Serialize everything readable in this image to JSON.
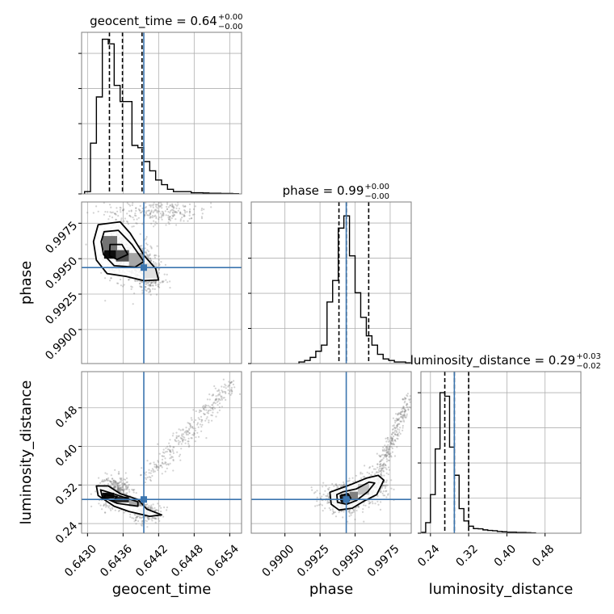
{
  "chart_data": {
    "type": "corner",
    "grid": true,
    "colors": {
      "truth": "#3b75af",
      "hist": "#000000",
      "grid": "#b0b0b0",
      "scatter": "#7f7f7f"
    },
    "parameters": [
      {
        "name": "geocent_time",
        "label": "geocent_time",
        "range": [
          0.6429,
          0.6456
        ],
        "ticks": [
          0.643,
          0.6436,
          0.6442,
          0.6448,
          0.6454
        ],
        "tick_labels": [
          "0.6430",
          "0.6436",
          "0.6442",
          "0.6448",
          "0.6454"
        ],
        "truth": 0.64395,
        "quantiles": [
          0.64337,
          0.64359,
          0.64392
        ],
        "title": {
          "base": "geocent_time = 0.64",
          "plus": "+0.00",
          "minus": "−0.00"
        },
        "hist": {
          "edges_start": 0.64295,
          "bin_width": 0.0001,
          "counts": [
            1,
            22,
            42,
            67,
            65,
            47,
            40,
            40,
            21,
            20,
            14,
            10,
            6,
            4,
            2,
            1,
            1,
            1,
            0.5,
            0.5,
            0.4,
            0.3,
            0.3,
            0.2,
            0.2,
            0.1
          ],
          "ymax": 70
        }
      },
      {
        "name": "phase",
        "label": "phase",
        "range": [
          0.9876,
          0.999
        ],
        "ticks": [
          0.99,
          0.9925,
          0.995,
          0.9975
        ],
        "tick_labels": [
          "0.9900",
          "0.9925",
          "0.9950",
          "0.9975"
        ],
        "truth": 0.99437,
        "quantiles": [
          0.99385,
          0.99438,
          0.99597
        ],
        "title": {
          "base": "phase = 0.99",
          "plus": "+0.00",
          "minus": "−0.00"
        },
        "hist": {
          "edges_start": 0.991,
          "bin_width": 0.0004,
          "counts": [
            1,
            2,
            4,
            8,
            12,
            40,
            54,
            88,
            96,
            70,
            46,
            30,
            18,
            12,
            6,
            3,
            2,
            1,
            1,
            0.5
          ],
          "ymax": 105
        }
      },
      {
        "name": "luminosity_distance",
        "label": "luminosity_distance",
        "range": [
          0.22,
          0.555
        ],
        "ticks": [
          0.24,
          0.32,
          0.4,
          0.48
        ],
        "tick_labels": [
          "0.24",
          "0.32",
          "0.40",
          "0.48"
        ],
        "truth": 0.29,
        "quantiles": [
          0.27,
          0.29,
          0.32
        ],
        "title": {
          "base": "luminosity_distance = 0.29",
          "plus": "+0.03",
          "minus": "−0.02"
        },
        "hist": {
          "edges_start": 0.22,
          "bin_width": 0.01,
          "counts": [
            0.5,
            6,
            22,
            48,
            80,
            78,
            49,
            33,
            14,
            7,
            4,
            2.6,
            2.5,
            1.9,
            1.6,
            1.4,
            1.0,
            0.8,
            0.6,
            0.6,
            0.4,
            0.4,
            0.3,
            0.2
          ],
          "ymax": 92
        }
      }
    ],
    "pairs": [
      {
        "x": "geocent_time",
        "y": "phase",
        "mode": {
          "x": 0.64348,
          "y": 0.99525
        },
        "scatter_blobs": [
          {
            "cx": 0.6435,
            "cy": 0.9956,
            "sx": 0.00013,
            "sy": 0.00085,
            "n": 600
          },
          {
            "cx": 0.64385,
            "cy": 0.9947,
            "sx": 0.00016,
            "sy": 0.00075,
            "n": 420
          },
          {
            "cx": 0.6442,
            "cy": 0.9983,
            "sx": 0.00045,
            "sy": 0.0004,
            "n": 260
          },
          {
            "cx": 0.64405,
            "cy": 0.9934,
            "sx": 0.00015,
            "sy": 0.00035,
            "n": 120
          }
        ],
        "contours": [
          [
            [
              0.64318,
              0.9974
            ],
            [
              0.64355,
              0.9976
            ],
            [
              0.64372,
              0.9968
            ],
            [
              0.64396,
              0.9952
            ],
            [
              0.64415,
              0.9943
            ],
            [
              0.6442,
              0.9935
            ],
            [
              0.64395,
              0.99345
            ],
            [
              0.64365,
              0.99375
            ],
            [
              0.64333,
              0.99395
            ],
            [
              0.64315,
              0.9949
            ],
            [
              0.6431,
              0.9962
            ]
          ],
          [
            [
              0.64328,
              0.9969
            ],
            [
              0.64352,
              0.997
            ],
            [
              0.64375,
              0.996
            ],
            [
              0.64395,
              0.9948
            ],
            [
              0.6438,
              0.9944
            ],
            [
              0.64345,
              0.9945
            ],
            [
              0.64327,
              0.9953
            ],
            [
              0.64323,
              0.9962
            ]
          ],
          [
            [
              0.64338,
              0.996
            ],
            [
              0.64358,
              0.996
            ],
            [
              0.64368,
              0.9953
            ],
            [
              0.6435,
              0.99495
            ],
            [
              0.64337,
              0.9952
            ]
          ]
        ],
        "density_cells": [
          {
            "x0": 0.64328,
            "x1": 0.64348,
            "y0": 0.995,
            "y1": 0.9956,
            "shade": 0.95
          },
          {
            "x0": 0.64348,
            "x1": 0.6437,
            "y0": 0.9948,
            "y1": 0.9956,
            "shade": 0.7
          },
          {
            "x0": 0.64325,
            "x1": 0.6435,
            "y0": 0.9956,
            "y1": 0.9966,
            "shade": 0.55
          },
          {
            "x0": 0.6437,
            "x1": 0.64395,
            "y0": 0.9944,
            "y1": 0.9954,
            "shade": 0.35
          },
          {
            "x0": 0.64395,
            "x1": 0.64418,
            "y0": 0.9936,
            "y1": 0.9947,
            "shade": 0.12
          }
        ]
      },
      {
        "x": "geocent_time",
        "y": "luminosity_distance",
        "mode": {
          "x": 0.64355,
          "y": 0.295
        },
        "scatter_blobs": [
          {
            "cx": 0.64345,
            "cy": 0.305,
            "sx": 0.00013,
            "sy": 0.016,
            "n": 520
          },
          {
            "cx": 0.644,
            "cy": 0.262,
            "sx": 0.00012,
            "sy": 0.01,
            "n": 220
          }
        ],
        "scatter_streak": {
          "x0": 0.64395,
          "y0": 0.33,
          "x1": 0.64545,
          "y1": 0.53,
          "sx": 9e-05,
          "sy": 0.008,
          "n": 320
        },
        "contours": [
          [
            [
              0.64315,
              0.318
            ],
            [
              0.64335,
              0.318
            ],
            [
              0.64355,
              0.302
            ],
            [
              0.64385,
              0.29
            ],
            [
              0.644,
              0.27
            ],
            [
              0.64425,
              0.258
            ],
            [
              0.64405,
              0.255
            ],
            [
              0.6437,
              0.265
            ],
            [
              0.64345,
              0.276
            ],
            [
              0.64318,
              0.298
            ]
          ],
          [
            [
              0.64322,
              0.31
            ],
            [
              0.64348,
              0.3
            ],
            [
              0.64385,
              0.285
            ],
            [
              0.64385,
              0.276
            ],
            [
              0.6435,
              0.282
            ],
            [
              0.64325,
              0.295
            ]
          ],
          [
            [
              0.6433,
              0.3
            ],
            [
              0.6435,
              0.296
            ],
            [
              0.64345,
              0.288
            ],
            [
              0.64328,
              0.292
            ]
          ]
        ],
        "density_cells": [
          {
            "x0": 0.64325,
            "x1": 0.64345,
            "y0": 0.292,
            "y1": 0.304,
            "shade": 0.95
          },
          {
            "x0": 0.64345,
            "x1": 0.6437,
            "y0": 0.284,
            "y1": 0.296,
            "shade": 0.85
          },
          {
            "x0": 0.6437,
            "x1": 0.64395,
            "y0": 0.276,
            "y1": 0.29,
            "shade": 0.35
          }
        ]
      },
      {
        "x": "phase",
        "y": "luminosity_distance",
        "mode": {
          "x": 0.9942,
          "y": 0.29
        },
        "scatter_blobs": [
          {
            "cx": 0.9943,
            "cy": 0.292,
            "sx": 0.0008,
            "sy": 0.014,
            "n": 600
          },
          {
            "cx": 0.9962,
            "cy": 0.318,
            "sx": 0.0006,
            "sy": 0.014,
            "n": 240
          }
        ],
        "scatter_streak": {
          "x0": 0.9965,
          "y0": 0.33,
          "x1": 0.9988,
          "y1": 0.5,
          "sx": 0.0002,
          "sy": 0.01,
          "n": 300
        },
        "contours": [
          [
            [
              0.9932,
              0.305
            ],
            [
              0.99385,
              0.312
            ],
            [
              0.9948,
              0.322
            ],
            [
              0.9958,
              0.334
            ],
            [
              0.99665,
              0.34
            ],
            [
              0.99705,
              0.33
            ],
            [
              0.99655,
              0.3
            ],
            [
              0.9956,
              0.286
            ],
            [
              0.9948,
              0.272
            ],
            [
              0.99385,
              0.268
            ],
            [
              0.9933,
              0.28
            ]
          ],
          [
            [
              0.9937,
              0.3
            ],
            [
              0.99415,
              0.306
            ],
            [
              0.9951,
              0.312
            ],
            [
              0.996,
              0.326
            ],
            [
              0.9964,
              0.324
            ],
            [
              0.9959,
              0.306
            ],
            [
              0.9951,
              0.288
            ],
            [
              0.9944,
              0.28
            ],
            [
              0.99375,
              0.284
            ]
          ],
          [
            [
              0.99395,
              0.298
            ],
            [
              0.9945,
              0.302
            ],
            [
              0.9947,
              0.292
            ],
            [
              0.99445,
              0.284
            ],
            [
              0.994,
              0.287
            ]
          ]
        ],
        "density_cells": [
          {
            "x0": 0.994,
            "x1": 0.9946,
            "y0": 0.283,
            "y1": 0.301,
            "shade": 0.85
          },
          {
            "x0": 0.9946,
            "x1": 0.9952,
            "y0": 0.288,
            "y1": 0.306,
            "shade": 0.5
          },
          {
            "x0": 0.9952,
            "x1": 0.996,
            "y0": 0.3,
            "y1": 0.322,
            "shade": 0.25
          }
        ]
      }
    ]
  }
}
